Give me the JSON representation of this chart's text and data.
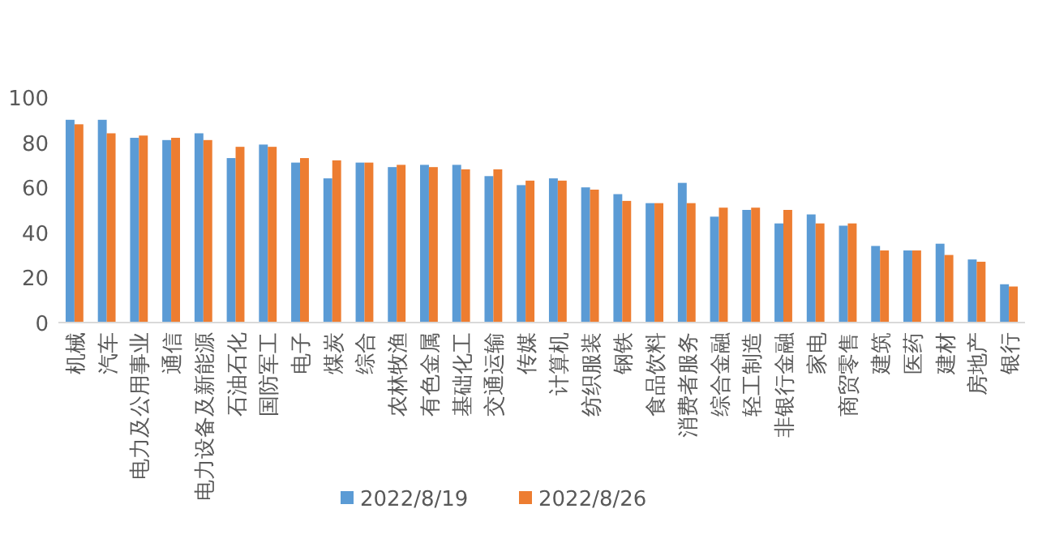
{
  "chart_data": {
    "type": "bar",
    "categories": [
      "机械",
      "汽车",
      "电力及公用事业",
      "通信",
      "电力设备及新能源",
      "石油石化",
      "国防军工",
      "电子",
      "煤炭",
      "综合",
      "农林牧渔",
      "有色金属",
      "基础化工",
      "交通运输",
      "传媒",
      "计算机",
      "纺织服装",
      "钢铁",
      "食品饮料",
      "消费者服务",
      "综合金融",
      "轻工制造",
      "非银行金融",
      "家电",
      "商贸零售",
      "建筑",
      "医药",
      "建材",
      "房地产",
      "银行"
    ],
    "series": [
      {
        "name": "2022/8/19",
        "color": "#5b9bd5",
        "values": [
          90,
          90,
          82,
          81,
          84,
          73,
          79,
          71,
          64,
          71,
          69,
          70,
          70,
          65,
          61,
          64,
          60,
          57,
          53,
          62,
          47,
          50,
          44,
          48,
          43,
          34,
          32,
          35,
          28,
          17
        ]
      },
      {
        "name": "2022/8/26",
        "color": "#ed7d31",
        "values": [
          88,
          84,
          83,
          82,
          81,
          78,
          78,
          73,
          72,
          71,
          70,
          69,
          68,
          68,
          63,
          63,
          59,
          54,
          53,
          53,
          51,
          51,
          50,
          44,
          44,
          32,
          32,
          30,
          27,
          16
        ]
      }
    ],
    "ylim": [
      0,
      100
    ],
    "yticks": [
      0,
      20,
      40,
      60,
      80,
      100
    ],
    "grid": false,
    "legend": "bottom"
  }
}
